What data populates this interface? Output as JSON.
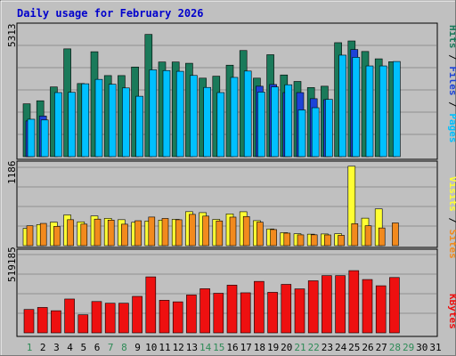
{
  "chart_data": {
    "type": "bar",
    "title": "Daily usage for February 2026",
    "days": [
      "1",
      "2",
      "3",
      "4",
      "5",
      "6",
      "7",
      "8",
      "9",
      "10",
      "11",
      "12",
      "13",
      "14",
      "15",
      "16",
      "17",
      "18",
      "19",
      "20",
      "21",
      "22",
      "23",
      "24",
      "25",
      "26",
      "27",
      "28",
      "29",
      "30",
      "31"
    ],
    "weekend_days": [
      1,
      7,
      8,
      14,
      15,
      21,
      22,
      28,
      29
    ],
    "day_label_color": "#000000",
    "weekend_label_color": "#2e8b57",
    "panels": [
      {
        "id": "pages-files-hits",
        "ymax_label": "5313",
        "ylim": [
          0,
          5313
        ],
        "series_labels": [
          "Pages",
          "/",
          "Files",
          "/",
          "Hits"
        ],
        "series_label_colors": [
          "#00c0ff",
          "#000000",
          "#1d43d8",
          "#000000",
          "#1a7a5a"
        ],
        "series": [
          {
            "name": "Hits",
            "color": "#1a7a5a",
            "values": [
              2160,
              2285,
              2850,
              4408,
              2990,
              4290,
              3315,
              3315,
              3665,
              4998,
              3870,
              3870,
              3818,
              3210,
              3290,
              3740,
              4340,
              3210,
              4168,
              3340,
              3075,
              2825,
              2880,
              4660,
              4730,
              4300,
              4000,
              3880,
              null,
              null,
              null
            ]
          },
          {
            "name": "Files",
            "color": "#1d43d8",
            "values": [
              1460,
              1660,
              null,
              null,
              null,
              null,
              null,
              null,
              null,
              null,
              null,
              null,
              null,
              null,
              null,
              null,
              null,
              2880,
              2950,
              2620,
              2620,
              2370,
              2330,
              null,
              4380,
              null,
              null,
              null,
              null,
              null,
              null
            ]
          },
          {
            "name": "Pages",
            "color": "#00c0ff",
            "values": [
              1530,
              1500,
              2620,
              2630,
              2980,
              3160,
              2960,
              2810,
              2470,
              3550,
              3520,
              3490,
              3320,
              2830,
              2620,
              3240,
              3500,
              2640,
              2850,
              2940,
              1910,
              2000,
              2340,
              4150,
              4060,
              3710,
              3710,
              3890,
              null,
              null,
              null
            ]
          }
        ]
      },
      {
        "id": "sites-visits",
        "ymax_label": "1186",
        "ylim": [
          0,
          1186
        ],
        "series_labels": [
          "Sites",
          "/",
          "Visits"
        ],
        "series_label_colors": [
          "#f28a1d",
          "#000000",
          "#ffff33"
        ],
        "series": [
          {
            "name": "Visits",
            "color": "#ffff33",
            "values": [
              250,
              305,
              340,
              445,
              345,
              430,
              395,
              376,
              338,
              357,
              370,
              381,
              492,
              478,
              380,
              460,
              491,
              362,
              242,
              188,
              172,
              166,
              169,
              172,
              1150,
              398,
              532,
              null,
              null,
              null,
              null
            ]
          },
          {
            "name": "Sites",
            "color": "#f28a1d",
            "values": [
              288,
              322,
              279,
              376,
              312,
              384,
              370,
              311,
              361,
              414,
              394,
              375,
              453,
              428,
              358,
              413,
              421,
              340,
              233,
              181,
              156,
              157,
              155,
              149,
              318,
              288,
              256,
              329,
              null,
              null,
              null
            ]
          }
        ]
      },
      {
        "id": "kbytes",
        "ymax_label": "519185",
        "ylim": [
          0,
          519185
        ],
        "series_labels": [
          "KBytes"
        ],
        "series_label_colors": [
          "#ee1010"
        ],
        "series": [
          {
            "name": "KBytes",
            "color": "#ee1010",
            "values": [
              150000,
              163000,
              142000,
              217000,
              116000,
              201000,
              190000,
              190000,
              234000,
              359000,
              209000,
              199000,
              243000,
              283000,
              254000,
              306000,
              257000,
              330000,
              260000,
              311000,
              282000,
              334000,
              367000,
              367000,
              399000,
              342000,
              302000,
              355000,
              null,
              null,
              null
            ]
          }
        ]
      }
    ]
  }
}
